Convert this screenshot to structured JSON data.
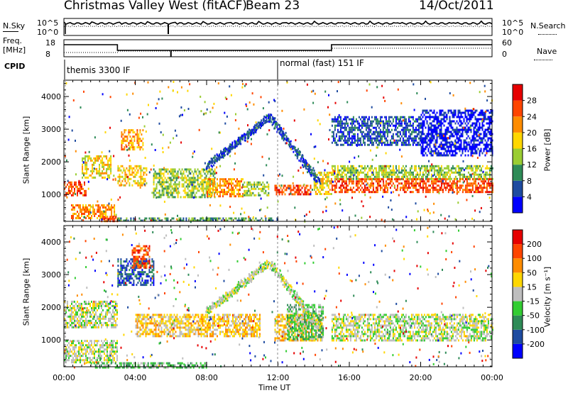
{
  "header": {
    "station": "Christmas Valley West (fitACF)",
    "beam": "Beam 23",
    "date": "14/Oct/2011"
  },
  "panels": {
    "nsky_label": "N.Sky",
    "nsearch_label": "N.Search",
    "freq_label_1": "Freq.",
    "freq_label_2": "[MHz]",
    "nave_label": "Nave",
    "cpid_label": "CPID",
    "cpid_1": "themis 3300 IF",
    "cpid_2": "normal (fast) 151 IF",
    "nsky_ticks": [
      "10^5",
      "10^0"
    ],
    "nsearch_ticks": [
      "10^5",
      "10^0"
    ],
    "freq_ticks": [
      "18",
      "8"
    ],
    "nave_ticks": [
      "60",
      "0"
    ]
  },
  "axes": {
    "x_label": "Time UT",
    "y_label": "Slant Range [km]",
    "x_ticks": [
      "00:00",
      "04:00",
      "08:00",
      "12:00",
      "16:00",
      "20:00",
      "00:00"
    ],
    "y_ticks": [
      "1000",
      "2000",
      "3000",
      "4000"
    ]
  },
  "colors": {
    "power": [
      "#0000ff",
      "#1e4ba0",
      "#2e8b57",
      "#9acd32",
      "#ffd700",
      "#ff8c00",
      "#ff4500",
      "#e60000"
    ],
    "velocity": [
      "#0000ff",
      "#1e4ba0",
      "#2e8b57",
      "#32cd32",
      "#bebebe",
      "#ffd700",
      "#ff8c00",
      "#ff4500",
      "#e60000"
    ]
  },
  "chart_data": [
    {
      "type": "heatmap",
      "name": "power",
      "xlim": [
        0,
        24
      ],
      "ylim": [
        180,
        4500
      ],
      "colorbar_label": "Power [dB]",
      "colorbar_ticks": [
        "28",
        "24",
        "20",
        "16",
        "12",
        "8",
        "4"
      ],
      "regions": [
        {
          "x0": 0.0,
          "x1": 1.2,
          "r0": 950,
          "r1": 1400,
          "level": 6
        },
        {
          "x0": 1.0,
          "x1": 2.6,
          "r0": 1500,
          "r1": 2200,
          "level": 4
        },
        {
          "x0": 0.4,
          "x1": 2.8,
          "r0": 250,
          "r1": 700,
          "level": 5
        },
        {
          "x0": 2.0,
          "x1": 3.0,
          "r0": 200,
          "r1": 350,
          "level": 6
        },
        {
          "x0": 3.0,
          "x1": 12.0,
          "r0": 200,
          "r1": 300,
          "level": 2
        },
        {
          "x0": 3.2,
          "x1": 4.4,
          "r0": 2400,
          "r1": 3000,
          "level": 5
        },
        {
          "x0": 3.0,
          "x1": 4.6,
          "r0": 1300,
          "r1": 1900,
          "level": 4
        },
        {
          "x0": 5.0,
          "x1": 8.5,
          "r0": 900,
          "r1": 1800,
          "level": 3
        },
        {
          "x0": 8.0,
          "x1": 10.0,
          "r0": 950,
          "r1": 1500,
          "level": 5
        },
        {
          "x0": 10.0,
          "x1": 11.5,
          "r0": 1000,
          "r1": 1400,
          "level": 3
        },
        {
          "x0": 11.8,
          "x1": 13.8,
          "r0": 1000,
          "r1": 1300,
          "level": 6
        },
        {
          "x0": 14.0,
          "x1": 15.0,
          "r0": 1000,
          "r1": 1700,
          "level": 4
        },
        {
          "x0": 15.0,
          "x1": 24.0,
          "r0": 1500,
          "r1": 1900,
          "level": 3
        },
        {
          "x0": 15.0,
          "x1": 24.0,
          "r0": 1050,
          "r1": 1500,
          "level": 6
        },
        {
          "x0": 15.0,
          "x1": 20.0,
          "r0": 2500,
          "r1": 3400,
          "level": 1
        },
        {
          "x0": 20.0,
          "x1": 24.0,
          "r0": 2200,
          "r1": 3600,
          "level": 0
        }
      ],
      "arc": {
        "from": [
          8.0,
          1900
        ],
        "peak": [
          11.5,
          3400
        ],
        "to": [
          14.3,
          1400
        ],
        "level": 1
      }
    },
    {
      "type": "heatmap",
      "name": "velocity",
      "xlim": [
        0,
        24
      ],
      "ylim": [
        180,
        4500
      ],
      "colorbar_label": "Velocity [m s⁻¹]",
      "colorbar_ticks": [
        "200",
        "100",
        "50",
        "15",
        "-15",
        "-50",
        "-100",
        "-200"
      ],
      "regions": [
        {
          "x0": 0.0,
          "x1": 3.0,
          "r0": 1400,
          "r1": 2200,
          "level": 4
        },
        {
          "x0": 0.0,
          "x1": 3.0,
          "r0": 300,
          "r1": 1000,
          "level": 4
        },
        {
          "x0": 1.5,
          "x1": 8.0,
          "r0": 180,
          "r1": 320,
          "level": 3
        },
        {
          "x0": 3.0,
          "x1": 5.0,
          "r0": 2700,
          "r1": 3500,
          "level": 1
        },
        {
          "x0": 3.8,
          "x1": 4.8,
          "r0": 3200,
          "r1": 3900,
          "level": 7
        },
        {
          "x0": 4.0,
          "x1": 8.0,
          "r0": 1100,
          "r1": 1800,
          "level": 5
        },
        {
          "x0": 8.0,
          "x1": 11.0,
          "r0": 1100,
          "r1": 1800,
          "level": 5
        },
        {
          "x0": 11.8,
          "x1": 14.5,
          "r0": 1000,
          "r1": 1800,
          "level": 5
        },
        {
          "x0": 12.5,
          "x1": 14.5,
          "r0": 1000,
          "r1": 2100,
          "level": 3
        },
        {
          "x0": 15.0,
          "x1": 24.0,
          "r0": 1000,
          "r1": 1800,
          "level": 4
        }
      ],
      "arc": {
        "from": [
          8.0,
          1900
        ],
        "peak": [
          11.5,
          3400
        ],
        "to": [
          14.3,
          1400
        ],
        "level": 4
      }
    }
  ]
}
